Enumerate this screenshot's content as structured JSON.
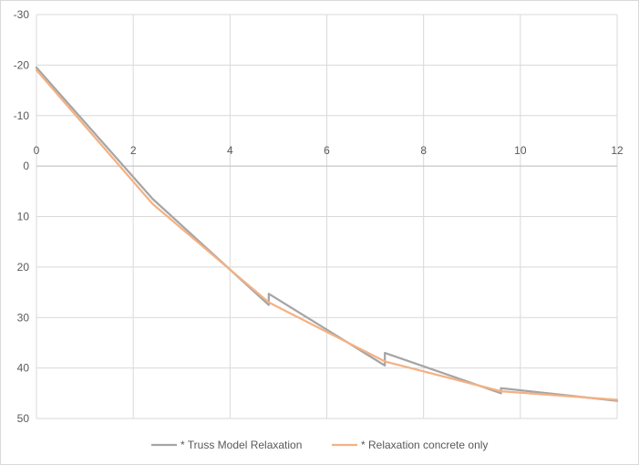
{
  "chart_data": {
    "type": "line",
    "title": "",
    "xlabel": "",
    "ylabel": "",
    "xlim": [
      0,
      12
    ],
    "ylim": [
      -30,
      50
    ],
    "y_reversed": true,
    "grid": true,
    "legend_position": "bottom",
    "x_ticks": [
      "0",
      "2",
      "4",
      "6",
      "8",
      "10",
      "12"
    ],
    "y_ticks": [
      "-30",
      "-20",
      "-10",
      "0",
      "10",
      "20",
      "30",
      "40",
      "50"
    ],
    "series": [
      {
        "name": "* Truss Model Relaxation",
        "color": "#a5a5a5",
        "x": [
          0,
          2.4,
          4.8,
          4.8,
          7.2,
          7.2,
          9.6,
          9.6,
          12
        ],
        "y": [
          -19.5,
          6.5,
          27.5,
          25.3,
          39.5,
          37.0,
          45.0,
          44.0,
          46.5
        ]
      },
      {
        "name": "* Relaxation concrete only",
        "color": "#f4b183",
        "x": [
          0,
          2.4,
          4.8,
          7.2,
          9.6,
          12
        ],
        "y": [
          -19.0,
          7.5,
          27.0,
          38.7,
          44.6,
          46.3
        ]
      }
    ]
  }
}
